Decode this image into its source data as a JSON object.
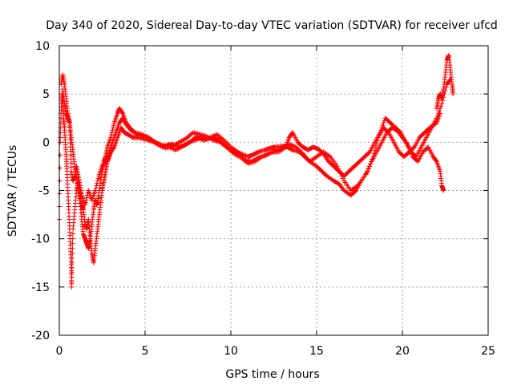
{
  "colors": {
    "series": "#ff0000",
    "grid": "#a0a0a0",
    "axis": "#000000"
  },
  "chart_data": {
    "type": "scatter",
    "title": "Day 340 of 2020, Sidereal Day-to-day VTEC variation (SDTVAR) for receiver ufcd",
    "xlabel": "GPS time / hours",
    "ylabel": "SDTVAR / TECUs",
    "xlim": [
      0,
      25
    ],
    "ylim": [
      -20,
      10
    ],
    "xticks": [
      0,
      5,
      10,
      15,
      20,
      25
    ],
    "yticks": [
      -20,
      -15,
      -10,
      -5,
      0,
      5,
      10
    ],
    "grid": true,
    "marker": "+",
    "series": [
      {
        "name": "SDTVAR",
        "color": "#ff0000",
        "tracks": [
          [
            [
              0.0,
              -8.0
            ],
            [
              0.05,
              0.0
            ],
            [
              0.1,
              3.0
            ],
            [
              0.15,
              5.0
            ],
            [
              0.2,
              4.0
            ],
            [
              0.25,
              2.5
            ],
            [
              0.3,
              1.5
            ],
            [
              0.35,
              0.0
            ],
            [
              0.4,
              -1.5
            ],
            [
              0.45,
              -3.0
            ],
            [
              0.5,
              -5.0
            ],
            [
              0.55,
              -7.0
            ],
            [
              0.6,
              -9.0
            ],
            [
              0.65,
              -11.0
            ],
            [
              0.7,
              -13.0
            ],
            [
              0.72,
              -15.0
            ],
            [
              0.75,
              -12.0
            ],
            [
              0.8,
              -9.0
            ],
            [
              0.9,
              -7.0
            ],
            [
              1.0,
              -5.0
            ],
            [
              1.1,
              -4.0
            ],
            [
              1.2,
              -5.0
            ],
            [
              1.3,
              -6.5
            ],
            [
              1.4,
              -7.0
            ],
            [
              1.5,
              -8.5
            ],
            [
              1.6,
              -9.0
            ],
            [
              1.7,
              -8.0
            ],
            [
              1.8,
              -10.0
            ],
            [
              1.9,
              -11.5
            ],
            [
              2.0,
              -12.5
            ],
            [
              2.1,
              -11.0
            ],
            [
              2.2,
              -9.5
            ],
            [
              2.3,
              -8.0
            ],
            [
              2.4,
              -6.5
            ],
            [
              2.5,
              -5.0
            ],
            [
              2.6,
              -4.0
            ],
            [
              2.7,
              -3.0
            ],
            [
              2.8,
              -2.0
            ],
            [
              2.9,
              -1.5
            ],
            [
              3.0,
              -1.0
            ],
            [
              3.2,
              -0.5
            ],
            [
              3.4,
              0.5
            ],
            [
              3.6,
              1.5
            ],
            [
              3.8,
              1.0
            ],
            [
              4.0,
              0.8
            ],
            [
              4.3,
              0.5
            ],
            [
              4.6,
              0.5
            ],
            [
              5.0,
              0.3
            ],
            [
              5.5,
              0.0
            ],
            [
              6.0,
              -0.5
            ],
            [
              6.3,
              -0.3
            ],
            [
              6.6,
              -0.2
            ],
            [
              7.0,
              -0.5
            ],
            [
              7.3,
              -0.3
            ],
            [
              7.6,
              0.0
            ],
            [
              8.0,
              0.3
            ],
            [
              8.3,
              0.5
            ],
            [
              8.6,
              0.3
            ],
            [
              9.0,
              0.5
            ],
            [
              9.3,
              0.2
            ],
            [
              9.6,
              -0.3
            ],
            [
              10.0,
              -0.8
            ],
            [
              10.3,
              -1.0
            ],
            [
              10.6,
              -1.2
            ],
            [
              11.0,
              -1.5
            ],
            [
              11.3,
              -1.3
            ],
            [
              11.6,
              -1.0
            ],
            [
              12.0,
              -0.8
            ],
            [
              12.3,
              -0.6
            ],
            [
              12.6,
              -0.5
            ],
            [
              13.0,
              -0.4
            ],
            [
              13.3,
              -0.5
            ],
            [
              13.6,
              -0.8
            ],
            [
              14.0,
              -1.0
            ],
            [
              14.3,
              -1.5
            ],
            [
              14.6,
              -2.0
            ],
            [
              15.0,
              -2.5
            ],
            [
              15.3,
              -3.0
            ],
            [
              15.6,
              -3.5
            ],
            [
              16.0,
              -4.0
            ],
            [
              16.3,
              -4.3
            ],
            [
              16.6,
              -5.0
            ],
            [
              17.0,
              -5.5
            ],
            [
              17.3,
              -5.0
            ],
            [
              17.6,
              -4.0
            ],
            [
              18.0,
              -3.0
            ],
            [
              18.3,
              -1.5
            ],
            [
              18.6,
              0.5
            ],
            [
              18.9,
              1.5
            ],
            [
              19.2,
              1.0
            ],
            [
              19.5,
              0.0
            ],
            [
              19.8,
              -1.0
            ],
            [
              20.1,
              -1.5
            ],
            [
              20.4,
              -1.0
            ],
            [
              20.7,
              -0.5
            ],
            [
              21.0,
              0.5
            ],
            [
              21.3,
              1.0
            ],
            [
              21.6,
              1.5
            ],
            [
              22.0,
              2.0
            ],
            [
              22.2,
              3.0
            ]
          ],
          [
            [
              0.1,
              6.0
            ],
            [
              0.2,
              7.0
            ],
            [
              0.3,
              6.0
            ],
            [
              0.4,
              4.5
            ],
            [
              0.5,
              3.0
            ],
            [
              0.6,
              2.0
            ],
            [
              0.7,
              0.5
            ],
            [
              0.8,
              -1.0
            ],
            [
              0.9,
              -2.5
            ],
            [
              1.0,
              -3.5
            ],
            [
              1.1,
              -5.0
            ],
            [
              1.2,
              -6.0
            ],
            [
              1.3,
              -8.0
            ],
            [
              1.4,
              -9.5
            ],
            [
              1.5,
              -10.0
            ],
            [
              1.6,
              -10.5
            ],
            [
              1.7,
              -11.0
            ],
            [
              1.8,
              -10.0
            ],
            [
              1.9,
              -8.5
            ],
            [
              2.0,
              -7.0
            ],
            [
              2.1,
              -6.0
            ],
            [
              2.2,
              -6.5
            ],
            [
              2.3,
              -5.5
            ],
            [
              2.4,
              -4.0
            ],
            [
              2.5,
              -3.0
            ],
            [
              2.6,
              -2.0
            ],
            [
              2.7,
              -1.5
            ],
            [
              2.8,
              -0.5
            ],
            [
              3.0,
              0.5
            ],
            [
              3.2,
              2.0
            ],
            [
              3.4,
              3.0
            ],
            [
              3.5,
              3.5
            ],
            [
              3.7,
              3.0
            ],
            [
              3.9,
              2.0
            ],
            [
              4.1,
              1.5
            ],
            [
              4.4,
              1.0
            ],
            [
              4.8,
              0.8
            ],
            [
              5.2,
              0.5
            ],
            [
              5.6,
              0.0
            ],
            [
              6.0,
              -0.3
            ],
            [
              6.4,
              -0.5
            ],
            [
              6.8,
              -0.8
            ],
            [
              7.2,
              -0.4
            ],
            [
              7.6,
              0.0
            ],
            [
              8.0,
              0.6
            ],
            [
              8.4,
              0.2
            ],
            [
              8.8,
              0.5
            ],
            [
              9.2,
              0.8
            ],
            [
              9.6,
              0.2
            ],
            [
              10.0,
              -0.5
            ],
            [
              10.4,
              -1.0
            ],
            [
              10.8,
              -1.8
            ],
            [
              11.2,
              -2.0
            ],
            [
              11.6,
              -1.6
            ],
            [
              12.0,
              -1.4
            ],
            [
              12.4,
              -1.0
            ],
            [
              12.8,
              -1.0
            ],
            [
              13.2,
              -0.5
            ],
            [
              13.4,
              0.5
            ],
            [
              13.6,
              1.0
            ],
            [
              13.9,
              0.0
            ],
            [
              14.2,
              -0.5
            ],
            [
              14.5,
              -0.8
            ],
            [
              14.8,
              -0.5
            ],
            [
              15.1,
              -0.7
            ],
            [
              15.4,
              -1.2
            ],
            [
              15.7,
              -2.0
            ],
            [
              16.0,
              -2.5
            ],
            [
              16.3,
              -3.0
            ],
            [
              16.6,
              -3.5
            ],
            [
              16.9,
              -3.0
            ],
            [
              17.2,
              -2.5
            ],
            [
              17.5,
              -2.0
            ],
            [
              17.8,
              -1.5
            ],
            [
              18.1,
              -1.0
            ],
            [
              18.4,
              0.0
            ],
            [
              18.7,
              1.0
            ],
            [
              19.0,
              2.5
            ],
            [
              19.3,
              2.0
            ],
            [
              19.6,
              1.5
            ],
            [
              19.9,
              1.0
            ],
            [
              20.2,
              0.0
            ],
            [
              20.5,
              -1.0
            ],
            [
              20.8,
              -1.5
            ],
            [
              21.1,
              -0.5
            ],
            [
              21.4,
              0.5
            ],
            [
              21.7,
              1.5
            ],
            [
              22.0,
              2.5
            ],
            [
              22.3,
              4.0
            ],
            [
              22.6,
              6.0
            ],
            [
              22.8,
              6.5
            ]
          ],
          [
            [
              0.2,
              5.5
            ],
            [
              0.3,
              4.0
            ],
            [
              0.4,
              3.0
            ],
            [
              0.5,
              2.5
            ],
            [
              0.6,
              2.0
            ],
            [
              0.65,
              -0.5
            ],
            [
              0.7,
              -3.0
            ],
            [
              0.8,
              -4.0
            ],
            [
              0.9,
              -3.5
            ],
            [
              1.0,
              -2.5
            ],
            [
              1.1,
              -3.5
            ],
            [
              1.2,
              -4.5
            ],
            [
              1.3,
              -5.5
            ],
            [
              1.5,
              -6.5
            ],
            [
              1.7,
              -5.0
            ],
            [
              1.9,
              -6.0
            ],
            [
              2.1,
              -5.0
            ],
            [
              2.3,
              -3.5
            ],
            [
              2.5,
              -2.5
            ],
            [
              2.7,
              -2.0
            ],
            [
              2.9,
              -1.0
            ],
            [
              3.1,
              0.0
            ],
            [
              3.3,
              1.0
            ],
            [
              3.5,
              2.0
            ],
            [
              3.7,
              2.5
            ],
            [
              3.9,
              1.8
            ],
            [
              4.2,
              1.2
            ],
            [
              4.6,
              0.8
            ],
            [
              5.0,
              0.6
            ],
            [
              5.4,
              0.2
            ],
            [
              5.8,
              -0.2
            ],
            [
              6.2,
              -0.6
            ],
            [
              6.6,
              -0.4
            ],
            [
              7.0,
              0.0
            ],
            [
              7.4,
              0.4
            ],
            [
              7.8,
              1.0
            ],
            [
              8.2,
              0.8
            ],
            [
              8.6,
              0.6
            ],
            [
              9.0,
              0.2
            ],
            [
              9.4,
              0.0
            ],
            [
              9.8,
              -0.6
            ],
            [
              10.2,
              -1.2
            ],
            [
              10.6,
              -1.6
            ],
            [
              11.0,
              -2.2
            ],
            [
              11.4,
              -2.0
            ],
            [
              11.8,
              -1.5
            ],
            [
              12.2,
              -1.2
            ],
            [
              12.6,
              -0.9
            ],
            [
              13.0,
              -0.6
            ],
            [
              13.4,
              -0.2
            ],
            [
              13.8,
              -0.5
            ],
            [
              14.2,
              -1.2
            ],
            [
              14.6,
              -2.0
            ],
            [
              15.0,
              -1.5
            ],
            [
              15.4,
              -1.0
            ],
            [
              15.8,
              -1.5
            ],
            [
              16.2,
              -2.5
            ],
            [
              16.6,
              -4.0
            ],
            [
              17.0,
              -5.0
            ],
            [
              17.4,
              -4.5
            ],
            [
              17.8,
              -3.5
            ],
            [
              18.2,
              -2.0
            ],
            [
              18.5,
              -1.0
            ],
            [
              18.8,
              0.0
            ],
            [
              19.1,
              1.0
            ],
            [
              19.4,
              1.5
            ],
            [
              19.7,
              1.2
            ],
            [
              20.0,
              0.5
            ],
            [
              20.3,
              -0.2
            ],
            [
              20.6,
              -1.5
            ],
            [
              20.9,
              -2.0
            ],
            [
              21.2,
              -1.0
            ],
            [
              21.5,
              -0.5
            ],
            [
              21.8,
              -1.5
            ],
            [
              22.0,
              -2.0
            ],
            [
              22.2,
              -3.0
            ],
            [
              22.3,
              -4.5
            ],
            [
              22.4,
              -5.0
            ]
          ],
          [
            [
              22.0,
              3.5
            ],
            [
              22.1,
              4.5
            ],
            [
              22.2,
              5.0
            ],
            [
              22.3,
              4.5
            ],
            [
              22.4,
              5.5
            ],
            [
              22.5,
              7.0
            ],
            [
              22.6,
              8.5
            ],
            [
              22.7,
              9.0
            ],
            [
              22.8,
              7.5
            ],
            [
              22.9,
              6.0
            ],
            [
              22.95,
              5.0
            ]
          ]
        ]
      }
    ]
  }
}
